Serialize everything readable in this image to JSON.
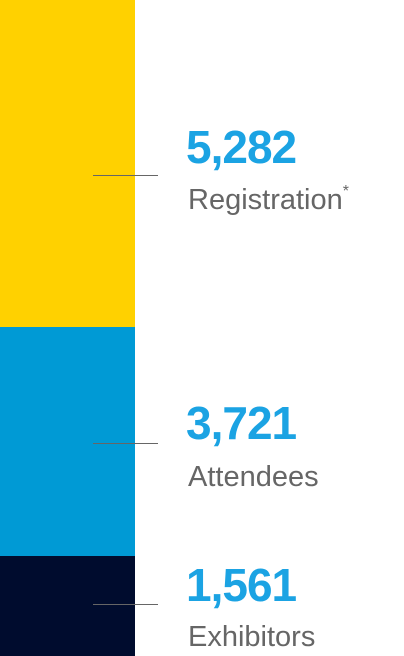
{
  "items": [
    {
      "value": "5,282",
      "label": "Registration",
      "footnote_mark": "*"
    },
    {
      "value": "3,721",
      "label": "Attendees"
    },
    {
      "value": "1,561",
      "label": "Exhibitors"
    }
  ]
}
